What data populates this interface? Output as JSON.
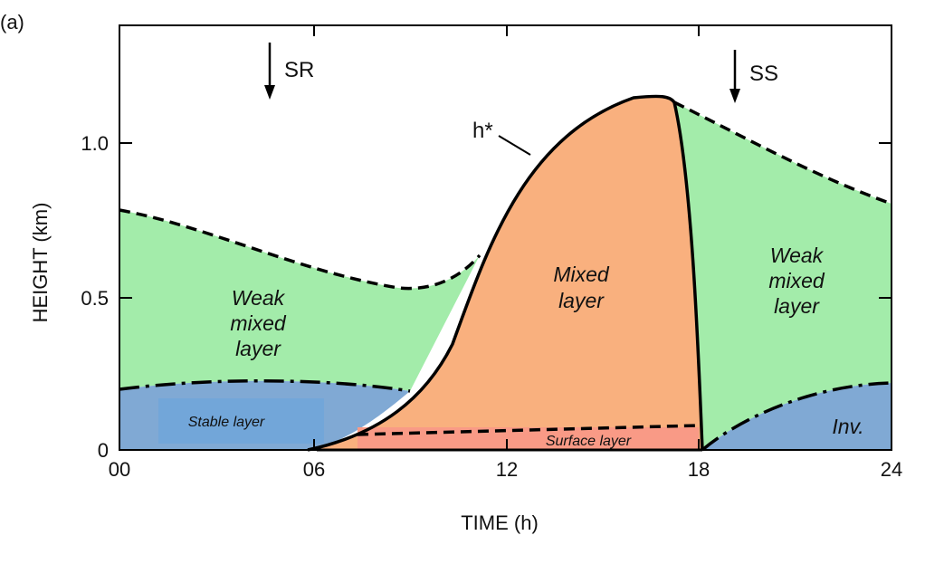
{
  "panel_label": "(a)",
  "x_axis": {
    "title": "TIME (h)",
    "range": [
      0,
      24
    ],
    "ticks": [
      "00",
      "06",
      "12",
      "18",
      "24"
    ]
  },
  "y_axis": {
    "title": "HEIGHT (km)",
    "range": [
      0,
      1.2
    ],
    "ticks": [
      "0",
      "0.5",
      "1.0"
    ]
  },
  "markers": {
    "sunrise": "SR",
    "sunset": "SS",
    "mixed_top": "h*"
  },
  "regions": {
    "weak_left": [
      "Weak",
      "mixed",
      "layer"
    ],
    "mixed": [
      "Mixed",
      "layer"
    ],
    "weak_right": [
      "Weak",
      "mixed",
      "layer"
    ],
    "stable": "Stable layer",
    "surface": "Surface layer",
    "inversion": "Inv."
  },
  "colors": {
    "weak_mixed": "#a3ecaa",
    "mixed": "#f9b07e",
    "stable": "#80a9d4",
    "stable_label_box": "#72a6d9",
    "surface": "#f99a86",
    "line": "#000000"
  }
}
